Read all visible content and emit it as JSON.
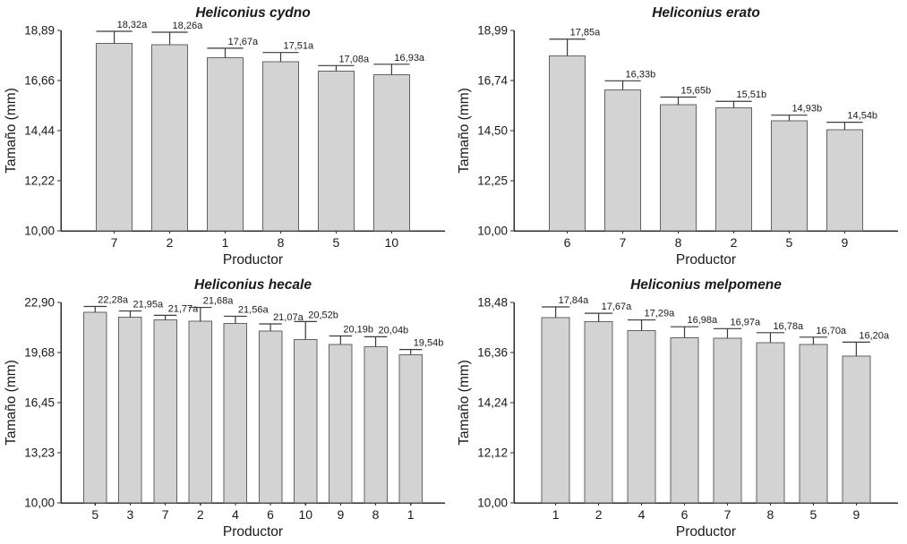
{
  "figure": {
    "name": "heliconius-size-by-producer-figure",
    "background": "#ffffff"
  },
  "colors": {
    "bar_fill": "#d3d3d3",
    "bar_stroke": "#636363",
    "axis": "#2e2e2e",
    "error_bar": "#3a3a3a",
    "text": "#1a1a1a"
  },
  "chart_data": [
    {
      "id": "heliconius-cydno",
      "type": "bar",
      "title": "Heliconius cydno",
      "xlabel": "Productor",
      "ylabel": "Tamaño (mm)",
      "categories": [
        "7",
        "2",
        "1",
        "8",
        "5",
        "10"
      ],
      "values": [
        18.32,
        18.26,
        17.67,
        17.51,
        17.08,
        16.93
      ],
      "errors_upper": [
        0.53,
        0.55,
        0.43,
        0.4,
        0.25,
        0.46
      ],
      "bar_labels": [
        "18,32a",
        "18,26a",
        "17,67a",
        "17,51a",
        "17,08a",
        "16,93a"
      ],
      "ytick_labels": [
        "10,00",
        "12,22",
        "14,44",
        "16,66",
        "18,89"
      ],
      "ylim": [
        10.0,
        18.89
      ],
      "grid": false,
      "legend": false
    },
    {
      "id": "heliconius-erato",
      "type": "bar",
      "title": "Heliconius erato",
      "xlabel": "Productor",
      "ylabel": "Tamaño (mm)",
      "categories": [
        "6",
        "7",
        "8",
        "2",
        "5",
        "9"
      ],
      "values": [
        17.85,
        16.33,
        15.65,
        15.51,
        14.93,
        14.54
      ],
      "errors_upper": [
        0.75,
        0.4,
        0.35,
        0.3,
        0.26,
        0.33
      ],
      "bar_labels": [
        "17,85a",
        "16,33b",
        "15,65b",
        "15,51b",
        "14,93b",
        "14,54b"
      ],
      "ytick_labels": [
        "10,00",
        "12,25",
        "14,50",
        "16,74",
        "18,99"
      ],
      "ylim": [
        10.0,
        18.99
      ],
      "grid": false,
      "legend": false
    },
    {
      "id": "heliconius-hecale",
      "type": "bar",
      "title": "Heliconius hecale",
      "xlabel": "Productor",
      "ylabel": "Tamaño (mm)",
      "categories": [
        "5",
        "3",
        "7",
        "2",
        "4",
        "6",
        "10",
        "9",
        "8",
        "1"
      ],
      "values": [
        22.28,
        21.95,
        21.77,
        21.68,
        21.56,
        21.07,
        20.52,
        20.19,
        20.04,
        19.54
      ],
      "errors_upper": [
        0.36,
        0.4,
        0.3,
        0.9,
        0.45,
        0.45,
        1.15,
        0.55,
        0.65,
        0.33
      ],
      "bar_labels": [
        "22,28a",
        "21,95a",
        "21,77a",
        "21,68a",
        "21,56a",
        "21,07a",
        "20,52b",
        "20,19b",
        "20,04b",
        "19,54b"
      ],
      "ytick_labels": [
        "10,00",
        "13,23",
        "16,45",
        "19,68",
        "22,90"
      ],
      "ylim": [
        10.0,
        22.9
      ],
      "grid": false,
      "legend": false
    },
    {
      "id": "heliconius-melpomene",
      "type": "bar",
      "title": "Heliconius melpomene",
      "xlabel": "Productor",
      "ylabel": "Tamaño (mm)",
      "categories": [
        "1",
        "2",
        "4",
        "6",
        "7",
        "8",
        "5",
        "9"
      ],
      "values": [
        17.84,
        17.67,
        17.29,
        16.98,
        16.97,
        16.78,
        16.7,
        16.2
      ],
      "errors_upper": [
        0.45,
        0.35,
        0.45,
        0.47,
        0.4,
        0.42,
        0.31,
        0.6
      ],
      "bar_labels": [
        "17,84a",
        "17,67a",
        "17,29a",
        "16,98a",
        "16,97a",
        "16,78a",
        "16,70a",
        "16,20a"
      ],
      "ytick_labels": [
        "10,00",
        "12,12",
        "14,24",
        "16,36",
        "18,48"
      ],
      "ylim": [
        10.0,
        18.48
      ],
      "grid": false,
      "legend": false
    }
  ]
}
